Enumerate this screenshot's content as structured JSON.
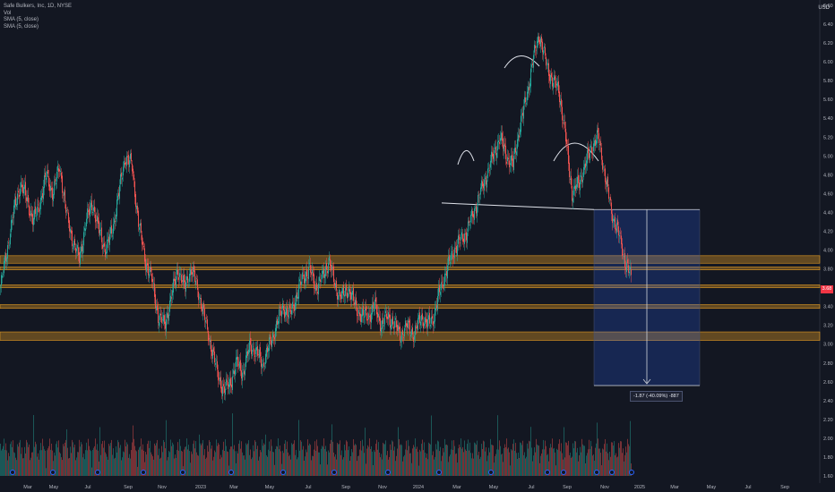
{
  "legend": {
    "symbol_line": "Safe Bulkers, Inc, 1D, NYSE",
    "vol_label": "Vol",
    "sma1_label": "SMA (5, close)",
    "sma2_label": "SMA (5, close)"
  },
  "currency": "USD",
  "price_scale": [
    "6.60",
    "6.40",
    "6.20",
    "6.00",
    "5.80",
    "5.60",
    "5.40",
    "5.20",
    "5.00",
    "4.80",
    "4.60",
    "4.40",
    "4.20",
    "4.00",
    "3.80",
    "3.60",
    "3.40",
    "3.20",
    "3.00",
    "2.80",
    "2.60",
    "2.40",
    "2.20",
    "2.00",
    "1.80",
    "1.60"
  ],
  "last_price": "3.68",
  "measure_label": "-1.87 (-40.09%) -887",
  "time_axis": [
    "Mar",
    "May",
    "Jul",
    "Sep",
    "Nov",
    "2023",
    "Mar",
    "May",
    "Jul",
    "Sep",
    "Nov",
    "2024",
    "Mar",
    "May",
    "Jul",
    "Sep",
    "Nov",
    "2025",
    "Mar",
    "May",
    "Jul",
    "Sep"
  ],
  "colors": {
    "background": "#131722",
    "up": "#26a69a",
    "down": "#ef5350",
    "zone": "#f5a623",
    "measure_box": "#2962ff",
    "price_badge": "#f23645"
  },
  "chart_data": {
    "type": "candlestick",
    "ylim": [
      1.6,
      6.6
    ],
    "zones": [
      [
        3.86,
        3.94
      ],
      [
        3.79,
        3.82
      ],
      [
        3.6,
        3.63
      ],
      [
        3.38,
        3.42
      ],
      [
        3.04,
        3.13
      ]
    ],
    "neckline": [
      4.5,
      4.43
    ],
    "measure": {
      "from": 4.43,
      "to": 2.56
    },
    "closes": [
      3.6,
      4.0,
      4.4,
      4.7,
      4.55,
      4.3,
      4.5,
      4.8,
      4.6,
      4.9,
      4.4,
      4.1,
      3.9,
      4.3,
      4.5,
      4.2,
      4.0,
      4.2,
      4.6,
      5.0,
      4.9,
      4.3,
      3.9,
      3.7,
      3.3,
      3.2,
      3.5,
      3.8,
      3.6,
      3.8,
      3.6,
      3.3,
      3.0,
      2.7,
      2.5,
      2.6,
      2.8,
      2.7,
      3.0,
      2.9,
      2.8,
      3.0,
      3.2,
      3.4,
      3.3,
      3.5,
      3.7,
      3.8,
      3.6,
      3.7,
      3.9,
      3.6,
      3.5,
      3.6,
      3.4,
      3.3,
      3.3,
      3.4,
      3.2,
      3.3,
      3.2,
      3.1,
      3.2,
      3.1,
      3.3,
      3.2,
      3.3,
      3.6,
      3.8,
      4.0,
      4.1,
      4.2,
      4.4,
      4.6,
      4.8,
      5.0,
      5.2,
      5.0,
      4.9,
      5.3,
      5.6,
      6.0,
      6.3,
      6.0,
      5.8,
      5.7,
      5.2,
      4.6,
      4.7,
      4.9,
      5.1,
      5.2,
      4.8,
      4.4,
      4.2,
      3.9,
      3.7
    ]
  }
}
